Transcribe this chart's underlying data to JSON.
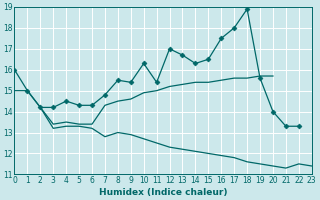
{
  "xlabel": "Humidex (Indice chaleur)",
  "xlim": [
    0,
    23
  ],
  "ylim": [
    11,
    19
  ],
  "yticks": [
    11,
    12,
    13,
    14,
    15,
    16,
    17,
    18,
    19
  ],
  "xticks": [
    0,
    1,
    2,
    3,
    4,
    5,
    6,
    7,
    8,
    9,
    10,
    11,
    12,
    13,
    14,
    15,
    16,
    17,
    18,
    19,
    20,
    21,
    22,
    23
  ],
  "bg_color": "#cce8eb",
  "grid_color": "#b0d8dc",
  "line_color": "#006868",
  "series": [
    {
      "x": [
        0,
        1,
        2,
        3,
        4,
        5,
        6,
        7,
        8,
        9,
        10,
        11,
        12,
        13,
        14,
        15,
        16,
        17,
        18,
        19,
        20,
        21,
        22
      ],
      "y": [
        16.0,
        15.0,
        14.2,
        14.2,
        14.5,
        14.3,
        14.3,
        14.8,
        15.5,
        15.4,
        16.3,
        15.4,
        17.0,
        16.7,
        16.3,
        16.5,
        17.5,
        18.0,
        18.9,
        15.6,
        14.0,
        13.3,
        13.3
      ],
      "marker": true
    },
    {
      "x": [
        0,
        1,
        2,
        3,
        4,
        5,
        6,
        7,
        8,
        9,
        10,
        11,
        12,
        13,
        14,
        15,
        16,
        17,
        18,
        19,
        20
      ],
      "y": [
        15.0,
        15.0,
        14.2,
        13.4,
        13.5,
        13.4,
        13.4,
        14.3,
        14.5,
        14.6,
        14.9,
        15.0,
        15.2,
        15.3,
        15.4,
        15.4,
        15.5,
        15.6,
        15.6,
        15.7,
        15.7
      ],
      "marker": false
    },
    {
      "x": [
        2,
        3,
        4,
        5,
        6,
        7,
        8,
        9,
        10,
        11,
        12,
        13,
        14,
        15,
        16,
        17,
        18,
        19,
        20,
        21,
        22,
        23
      ],
      "y": [
        14.2,
        13.2,
        13.3,
        13.3,
        13.2,
        12.8,
        13.0,
        12.9,
        12.7,
        12.5,
        12.3,
        12.2,
        12.1,
        12.0,
        11.9,
        11.8,
        11.6,
        11.5,
        11.4,
        11.3,
        11.5,
        11.4
      ],
      "marker": false
    }
  ]
}
